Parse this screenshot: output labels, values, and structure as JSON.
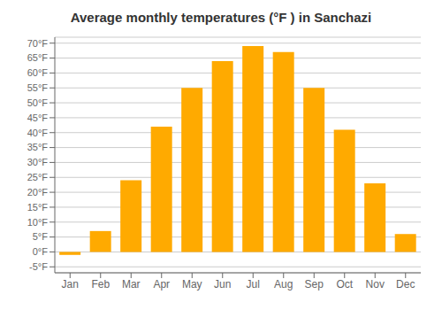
{
  "chart_data": {
    "type": "bar",
    "title": "Average monthly temperatures (°F ) in Sanchazi",
    "categories": [
      "Jan",
      "Feb",
      "Mar",
      "Apr",
      "May",
      "Jun",
      "Jul",
      "Aug",
      "Sep",
      "Oct",
      "Nov",
      "Dec"
    ],
    "values": [
      -1,
      7,
      24,
      42,
      55,
      64,
      69,
      67,
      55,
      41,
      23,
      6
    ],
    "color": "#FFAA00",
    "ylim": [
      -7,
      72
    ],
    "yticks": [
      {
        "value": -5,
        "label": "-5°F"
      },
      {
        "value": 0,
        "label": "0°F"
      },
      {
        "value": 5,
        "label": "5°F"
      },
      {
        "value": 10,
        "label": "10°F"
      },
      {
        "value": 15,
        "label": "15°F"
      },
      {
        "value": 20,
        "label": "20°F"
      },
      {
        "value": 25,
        "label": "25°F"
      },
      {
        "value": 30,
        "label": "30°F"
      },
      {
        "value": 35,
        "label": "35°F"
      },
      {
        "value": 40,
        "label": "40°F"
      },
      {
        "value": 45,
        "label": "45°F"
      },
      {
        "value": 50,
        "label": "50°F"
      },
      {
        "value": 55,
        "label": "55°F"
      },
      {
        "value": 60,
        "label": "60°F"
      },
      {
        "value": 65,
        "label": "65°F"
      },
      {
        "value": 70,
        "label": "70°F"
      }
    ],
    "grid": true
  }
}
